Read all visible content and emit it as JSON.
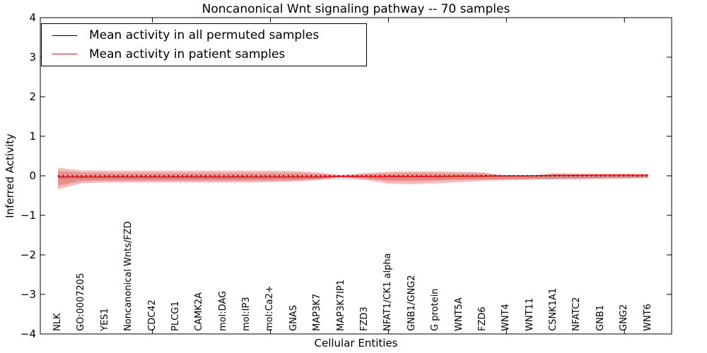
{
  "legend": {
    "items": [
      {
        "label": "Mean activity in all permuted samples",
        "color": "#000000"
      },
      {
        "label": "Mean activity in patient samples",
        "color": "#ff0000"
      }
    ]
  },
  "chart_data": {
    "type": "line",
    "title": "Noncanonical Wnt signaling pathway -- 70 samples",
    "xlabel": "Cellular Entities",
    "ylabel": "Inferred Activity",
    "xlim": [
      0.25,
      27
    ],
    "ylim": [
      -4,
      4
    ],
    "grid": false,
    "legend_position": "upper left",
    "y_ticks": [
      4,
      3,
      2,
      1,
      0,
      -1,
      -2,
      -3,
      -4
    ],
    "y_tick_labels": [
      "4",
      "3",
      "2",
      "1",
      "0",
      "−1",
      "−2",
      "−3",
      "−4"
    ],
    "x_major_ticks": [
      5,
      10,
      15,
      20,
      25
    ],
    "categories": [
      "NLK",
      "GO:0007205",
      "YES1",
      "Noncanonical Wnts/FZD",
      "CDC42",
      "PLCG1",
      "CAMK2A",
      "mol:DAG",
      "mol:IP3",
      "mol:Ca2+",
      "GNAS",
      "MAP3K7",
      "MAP3K7IP1",
      "FZD3",
      "NFAT1/CK1 alpha",
      "GNB1/GNG2",
      "G protein",
      "WNT5A",
      "FZD6",
      "WNT4",
      "WNT11",
      "CSNK1A1",
      "NFATC2",
      "GNB1",
      "GNG2",
      "WNT6"
    ],
    "x": [
      1,
      2,
      3,
      4,
      5,
      6,
      7,
      8,
      9,
      10,
      11,
      12,
      13,
      14,
      15,
      16,
      17,
      18,
      19,
      20,
      21,
      22,
      23,
      24,
      25,
      26
    ],
    "series": [
      {
        "name": "Mean activity in all permuted samples",
        "color": "#000000",
        "line_style": "dotted",
        "values": [
          0,
          0,
          0,
          0,
          0,
          0,
          0,
          0,
          0,
          0,
          0,
          0,
          0,
          0,
          0,
          0,
          0,
          0,
          0,
          0,
          0,
          0,
          0,
          0,
          0,
          0
        ],
        "band": {
          "color": "#999999",
          "opacity": 0.28,
          "upper": [
            0.1,
            0.09,
            0.09,
            0.09,
            0.09,
            0.09,
            0.09,
            0.09,
            0.09,
            0.09,
            0.09,
            0.09,
            0.1,
            0.1,
            0.09,
            0.09,
            0.09,
            0.09,
            0.09,
            0.09,
            0.09,
            0.09,
            0.09,
            0.09,
            0.09,
            0.08
          ],
          "lower": [
            -0.1,
            -0.09,
            -0.09,
            -0.09,
            -0.09,
            -0.09,
            -0.09,
            -0.09,
            -0.09,
            -0.09,
            -0.09,
            -0.09,
            -0.1,
            -0.1,
            -0.09,
            -0.09,
            -0.09,
            -0.09,
            -0.09,
            -0.09,
            -0.09,
            -0.09,
            -0.09,
            -0.09,
            -0.09,
            -0.08
          ]
        }
      },
      {
        "name": "Mean activity in patient samples",
        "color": "#ff0000",
        "line_style": "solid",
        "values": [
          -0.03,
          -0.03,
          -0.03,
          -0.03,
          -0.03,
          -0.03,
          -0.03,
          -0.03,
          -0.03,
          -0.03,
          -0.03,
          -0.03,
          -0.02,
          -0.02,
          -0.02,
          -0.02,
          -0.02,
          -0.01,
          -0.01,
          0,
          0,
          0.01,
          0.01,
          0.02,
          0.02,
          0.02
        ],
        "band_outer": {
          "color": "#dd3333",
          "opacity": 0.33,
          "upper": [
            0.2,
            0.14,
            0.13,
            0.13,
            0.13,
            0.13,
            0.13,
            0.13,
            0.13,
            0.13,
            0.12,
            0.09,
            0.02,
            0.07,
            0.1,
            0.11,
            0.11,
            0.1,
            0.09,
            0.08,
            0.08,
            0.07,
            0.06,
            0.05,
            0.05,
            0.04
          ],
          "lower": [
            -0.34,
            -0.19,
            -0.17,
            -0.17,
            -0.17,
            -0.17,
            -0.17,
            -0.17,
            -0.17,
            -0.16,
            -0.15,
            -0.11,
            -0.04,
            -0.1,
            -0.2,
            -0.21,
            -0.19,
            -0.16,
            -0.13,
            -0.11,
            -0.1,
            -0.09,
            -0.08,
            -0.07,
            -0.06,
            -0.05
          ]
        },
        "band_inner": {
          "color": "#dd3333",
          "opacity": 0.33,
          "upper": [
            0.12,
            0.08,
            0.07,
            0.07,
            0.07,
            0.07,
            0.07,
            0.07,
            0.07,
            0.07,
            0.07,
            0.05,
            0.01,
            0.04,
            0.06,
            0.07,
            0.07,
            0.06,
            0.06,
            0.05,
            0.05,
            0.04,
            0.04,
            0.03,
            0.03,
            0.02
          ],
          "lower": [
            -0.25,
            -0.13,
            -0.12,
            -0.12,
            -0.12,
            -0.12,
            -0.12,
            -0.12,
            -0.12,
            -0.12,
            -0.11,
            -0.08,
            -0.02,
            -0.06,
            -0.13,
            -0.14,
            -0.12,
            -0.1,
            -0.09,
            -0.08,
            -0.07,
            -0.06,
            -0.06,
            -0.05,
            -0.04,
            -0.04
          ]
        }
      }
    ]
  }
}
